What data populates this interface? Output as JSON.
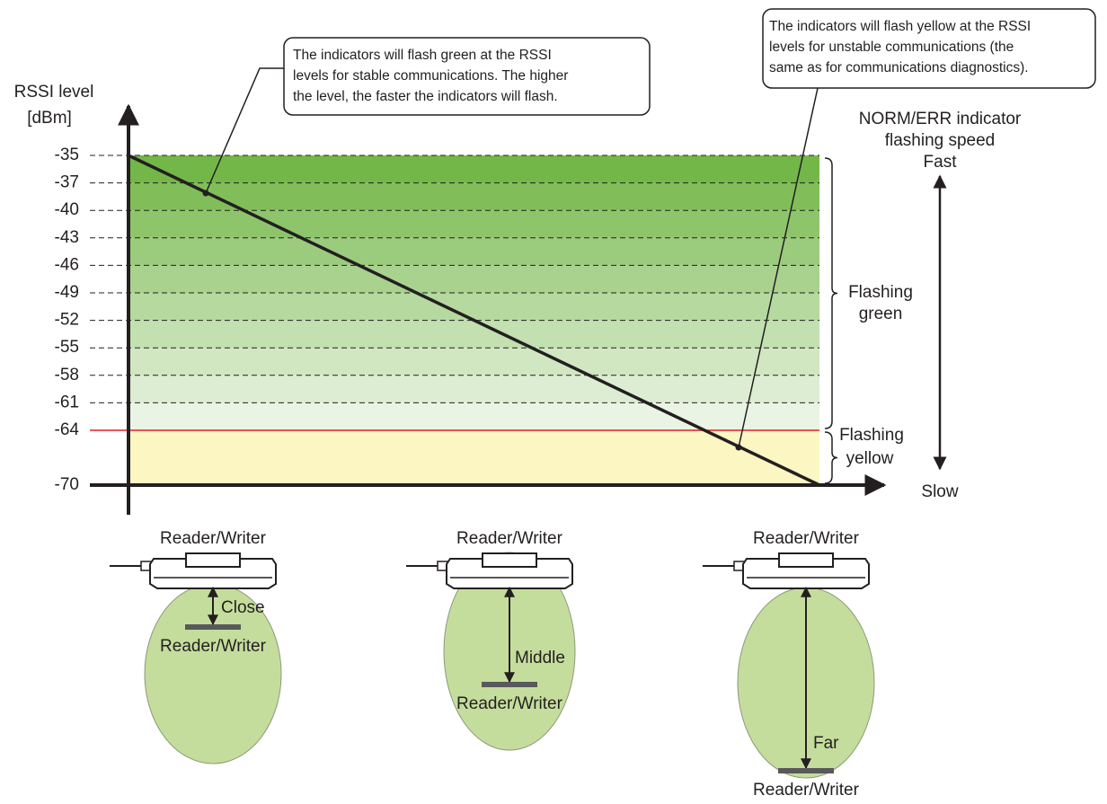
{
  "axis": {
    "title": [
      "RSSI level",
      "[dBm]"
    ],
    "levels": [
      -35,
      -37,
      -40,
      -43,
      -46,
      -49,
      -52,
      -55,
      -58,
      -61,
      -64,
      -70
    ]
  },
  "callouts": [
    {
      "lines": [
        "The indicators will flash green at the RSSI",
        "levels for stable communications. The higher",
        "the level, the faster the indicators will flash."
      ]
    },
    {
      "lines": [
        "The indicators will flash yellow at the RSSI",
        "levels for unstable communications (the",
        "same as for communications diagnostics)."
      ]
    }
  ],
  "speed": {
    "title": [
      "NORM/ERR indicator",
      "flashing speed",
      "Fast"
    ],
    "slow": "Slow"
  },
  "zones": [
    {
      "label": [
        "Flashing",
        "green"
      ]
    },
    {
      "label": [
        "Flashing",
        "yellow"
      ]
    }
  ],
  "devices": [
    {
      "top": "Reader/Writer",
      "distance": "Close",
      "tag": "Reader/Writer"
    },
    {
      "top": "Reader/Writer",
      "distance": "Middle",
      "tag": "Reader/Writer"
    },
    {
      "top": "Reader/Writer",
      "distance": "Far",
      "tag": "Reader/Writer"
    }
  ]
}
